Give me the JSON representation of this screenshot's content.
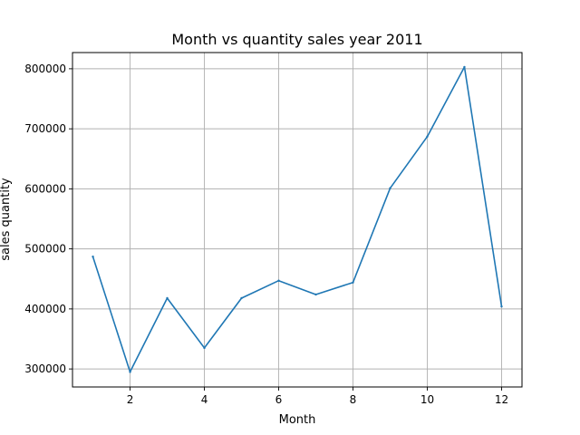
{
  "chart_data": {
    "type": "line",
    "title": "Month vs quantity sales year 2011",
    "xlabel": "Month",
    "ylabel": "sales quantity",
    "xlim": [
      0.45,
      12.55
    ],
    "ylim": [
      270000,
      827000
    ],
    "xticks": [
      2,
      4,
      6,
      8,
      10,
      12
    ],
    "yticks": [
      300000,
      400000,
      500000,
      600000,
      700000,
      800000
    ],
    "grid": true,
    "series": [
      {
        "x": [
          1,
          2,
          3,
          4,
          5,
          6,
          7,
          8,
          9,
          10,
          11,
          12
        ],
        "values": [
          487000,
          295000,
          418000,
          335000,
          418000,
          447000,
          424000,
          444000,
          601000,
          687000,
          803000,
          404000
        ],
        "color": "#1f77b4"
      }
    ]
  }
}
